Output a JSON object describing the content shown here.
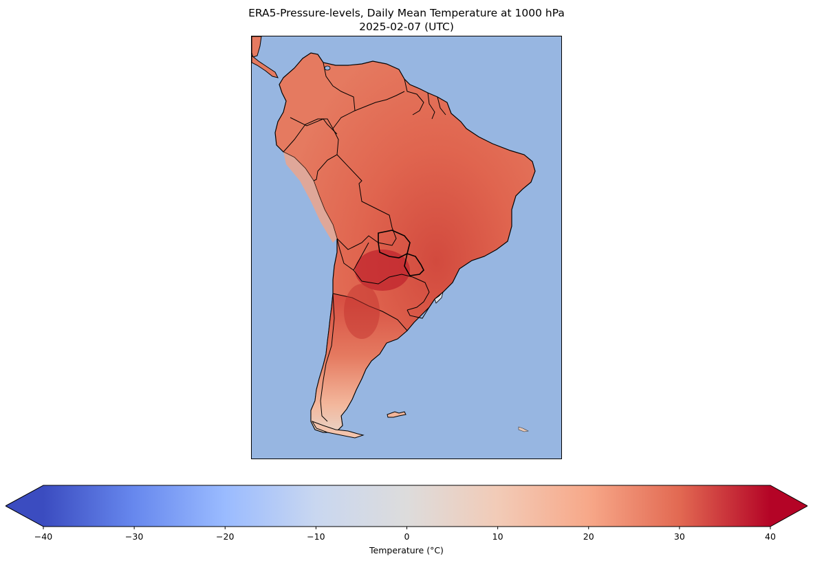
{
  "title": {
    "line1": "ERA5-Pressure-levels, Daily Mean Temperature at 1000 hPa",
    "line2": "2025-02-07 (UTC)"
  },
  "map": {
    "region": "South America",
    "variable": "Daily Mean Temperature",
    "ocean_color": "#97b6e1",
    "coastline_color": "#000000"
  },
  "colorbar": {
    "label": "Temperature (°C)",
    "colormap": "coolwarm",
    "min": -40,
    "max": 40,
    "extend": "both",
    "ticks": [
      "−40",
      "−30",
      "−20",
      "−10",
      "0",
      "10",
      "20",
      "30",
      "40"
    ],
    "tick_values": [
      -40,
      -30,
      -20,
      -10,
      0,
      10,
      20,
      30,
      40
    ],
    "stops": [
      "#3b4cc0",
      "#6788ee",
      "#9abbff",
      "#c9d7f0",
      "#dddcdc",
      "#f2cbb7",
      "#f7a889",
      "#e26952",
      "#b40426"
    ]
  }
}
